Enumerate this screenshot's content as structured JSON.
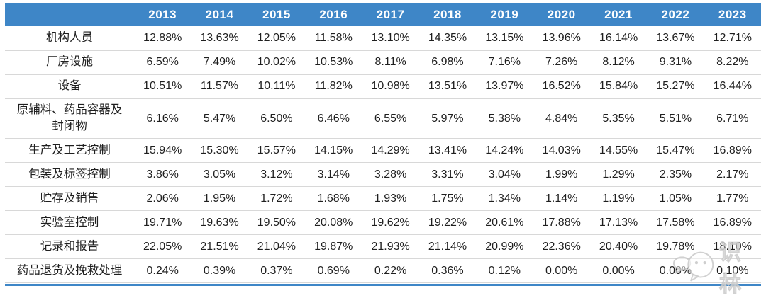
{
  "colors": {
    "header_bg": "#3e86c7",
    "header_text": "#ffffff",
    "row_line": "#d8d8d8",
    "bottom_line": "#3e86c7",
    "body_text": "#1f1f1f"
  },
  "watermark": {
    "text": "识林",
    "logo": "shilin-chat-bubbles-icon"
  },
  "chart_data": {
    "type": "table",
    "title": "",
    "row_header": "",
    "categories": [
      "2013",
      "2014",
      "2015",
      "2016",
      "2017",
      "2018",
      "2019",
      "2020",
      "2021",
      "2022",
      "2023"
    ],
    "value_format": "percent_2dp",
    "grid": "horizontal-lines",
    "legend_position": "none",
    "series": [
      {
        "name": "机构人员",
        "values": [
          12.88,
          13.63,
          12.05,
          11.58,
          13.1,
          14.35,
          13.15,
          13.96,
          16.14,
          13.67,
          12.71
        ]
      },
      {
        "name": "厂房设施",
        "values": [
          6.59,
          7.49,
          10.02,
          10.53,
          8.11,
          6.98,
          7.16,
          7.26,
          8.12,
          9.31,
          8.22
        ]
      },
      {
        "name": "设备",
        "values": [
          10.51,
          11.57,
          10.11,
          11.82,
          10.98,
          13.51,
          13.97,
          16.52,
          15.84,
          15.27,
          16.44
        ]
      },
      {
        "name": "原辅料、药品容器及封闭物",
        "values": [
          6.16,
          5.47,
          6.5,
          6.46,
          6.55,
          5.97,
          5.38,
          4.84,
          5.35,
          5.51,
          6.71
        ]
      },
      {
        "name": "生产及工艺控制",
        "values": [
          15.94,
          15.3,
          15.57,
          14.15,
          14.29,
          13.41,
          14.24,
          14.03,
          14.55,
          15.47,
          16.89
        ]
      },
      {
        "name": "包装及标签控制",
        "values": [
          3.86,
          3.05,
          3.12,
          3.14,
          3.28,
          3.31,
          3.04,
          1.99,
          1.29,
          2.35,
          2.17
        ]
      },
      {
        "name": "贮存及销售",
        "values": [
          2.06,
          1.95,
          1.72,
          1.68,
          1.93,
          1.75,
          1.34,
          1.14,
          1.19,
          1.05,
          1.77
        ]
      },
      {
        "name": "实验室控制",
        "values": [
          19.71,
          19.63,
          19.5,
          20.08,
          19.62,
          19.22,
          20.61,
          17.88,
          17.13,
          17.58,
          16.89
        ]
      },
      {
        "name": "记录和报告",
        "values": [
          22.05,
          21.51,
          21.04,
          19.87,
          21.93,
          21.14,
          20.99,
          22.36,
          20.4,
          19.78,
          18.1
        ]
      },
      {
        "name": "药品退货及挽救处理",
        "values": [
          0.24,
          0.39,
          0.37,
          0.69,
          0.22,
          0.36,
          0.12,
          0.0,
          0.0,
          0.0,
          0.1
        ]
      }
    ]
  }
}
